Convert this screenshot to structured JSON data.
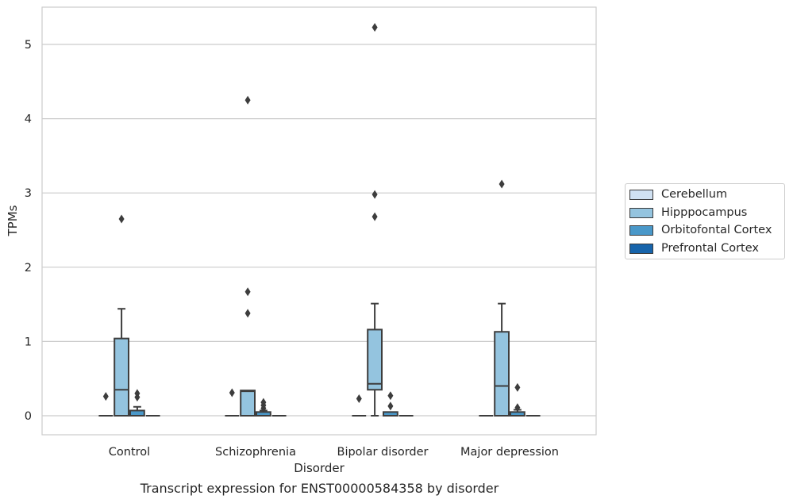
{
  "caption": "Transcript expression for ENST00000584358 by disorder",
  "chart_data": {
    "type": "box",
    "xlabel": "Disorder",
    "ylabel": "TPMs",
    "ylim": [
      -0.25,
      5.5
    ],
    "yticks": [
      0,
      1,
      2,
      3,
      4,
      5
    ],
    "grid": "horizontal",
    "legend_position": "right",
    "categories": [
      "Control",
      "Schizophrenia",
      "Bipolar disorder",
      "Major depression"
    ],
    "series": [
      {
        "name": "Cerebellum",
        "color": "#d0e1f2",
        "boxes": [
          {
            "q1": 0,
            "median": 0,
            "q3": 0,
            "whisker_low": 0,
            "whisker_high": 0,
            "outliers": [
              0.26
            ]
          },
          {
            "q1": 0,
            "median": 0,
            "q3": 0,
            "whisker_low": 0,
            "whisker_high": 0,
            "outliers": [
              0.31
            ]
          },
          {
            "q1": 0,
            "median": 0,
            "q3": 0,
            "whisker_low": 0,
            "whisker_high": 0,
            "outliers": [
              0.23
            ]
          },
          {
            "q1": 0,
            "median": 0,
            "q3": 0,
            "whisker_low": 0,
            "whisker_high": 0,
            "outliers": []
          }
        ]
      },
      {
        "name": "Hipppocampus",
        "color": "#94c4df",
        "boxes": [
          {
            "q1": 0,
            "median": 0.35,
            "q3": 1.04,
            "whisker_low": 0,
            "whisker_high": 1.44,
            "outliers": [
              2.65
            ]
          },
          {
            "q1": 0,
            "median": 0.33,
            "q3": 0.34,
            "whisker_low": 0,
            "whisker_high": 0.34,
            "outliers": [
              1.38,
              1.67,
              4.25
            ]
          },
          {
            "q1": 0.35,
            "median": 0.43,
            "q3": 1.16,
            "whisker_low": 0,
            "whisker_high": 1.51,
            "outliers": [
              2.68,
              2.98,
              5.23
            ]
          },
          {
            "q1": 0,
            "median": 0.4,
            "q3": 1.13,
            "whisker_low": 0,
            "whisker_high": 1.51,
            "outliers": [
              3.12
            ]
          }
        ]
      },
      {
        "name": "Orbitofontal Cortex",
        "color": "#4a98c9",
        "boxes": [
          {
            "q1": 0,
            "median": 0,
            "q3": 0.07,
            "whisker_low": 0,
            "whisker_high": 0.12,
            "outliers": [
              0.25,
              0.3
            ]
          },
          {
            "q1": 0,
            "median": 0,
            "q3": 0.05,
            "whisker_low": 0,
            "whisker_high": 0.07,
            "outliers": [
              0.1,
              0.14,
              0.18
            ]
          },
          {
            "q1": 0,
            "median": 0,
            "q3": 0.05,
            "whisker_low": 0,
            "whisker_high": 0.05,
            "outliers": [
              0.13,
              0.27
            ]
          },
          {
            "q1": 0,
            "median": 0,
            "q3": 0.05,
            "whisker_low": 0,
            "whisker_high": 0.08,
            "outliers": [
              0.11,
              0.38
            ]
          }
        ]
      },
      {
        "name": "Prefrontal Cortex",
        "color": "#1764ab",
        "boxes": [
          {
            "q1": 0,
            "median": 0,
            "q3": 0,
            "whisker_low": 0,
            "whisker_high": 0,
            "outliers": []
          },
          {
            "q1": 0,
            "median": 0,
            "q3": 0,
            "whisker_low": 0,
            "whisker_high": 0,
            "outliers": []
          },
          {
            "q1": 0,
            "median": 0,
            "q3": 0,
            "whisker_low": 0,
            "whisker_high": 0,
            "outliers": []
          },
          {
            "q1": 0,
            "median": 0,
            "q3": 0,
            "whisker_low": 0,
            "whisker_high": 0,
            "outliers": []
          }
        ]
      }
    ]
  }
}
